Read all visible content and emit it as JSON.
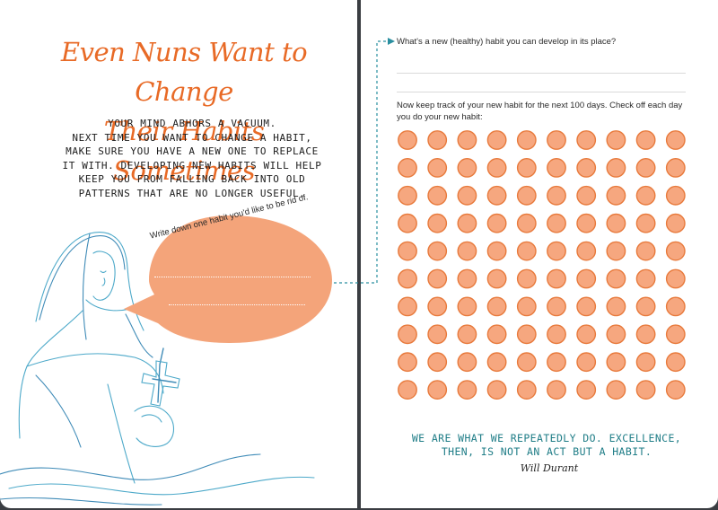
{
  "left_page": {
    "title_lines": [
      "Even Nuns Want to Change",
      "Their Habits Sometimes"
    ],
    "body_lines": [
      "YOUR MIND ABHORS A VACUUM.",
      "NEXT TIME YOU WANT TO CHANGE A HABIT,",
      "MAKE SURE YOU HAVE A NEW ONE TO REPLACE",
      "IT WITH. DEVELOPING NEW HABITS WILL HELP",
      "KEEP YOU FROM FALLING BACK INTO OLD",
      "PATTERNS THAT ARE NO LONGER USEFUL."
    ],
    "bubble_prompt": "Write down one habit you'd like to be rid of."
  },
  "right_page": {
    "question": "What's a new (healthy) habit you can develop in its place?",
    "tracker_prompt": "Now keep track of your new habit for the next 100 days. Check off each day you do your new habit:",
    "tracker": {
      "rows": 10,
      "columns": 10,
      "checked_count": 0
    },
    "quote_lines": [
      "WE ARE WHAT WE REPEATEDLY DO. EXCELLENCE,",
      "THEN, IS NOT AN ACT BUT A HABIT."
    ],
    "quote_author": "Will Durant"
  },
  "colors": {
    "accent_orange": "#e86a26",
    "bubble_fill": "#f4a47a",
    "circle_fill": "#f6a77f",
    "circle_stroke": "#e87a3c",
    "quote_teal": "#1f7d87",
    "connector_teal": "#2a8fa0"
  },
  "icons": {
    "connector_arrow": "arrow-right-icon"
  }
}
